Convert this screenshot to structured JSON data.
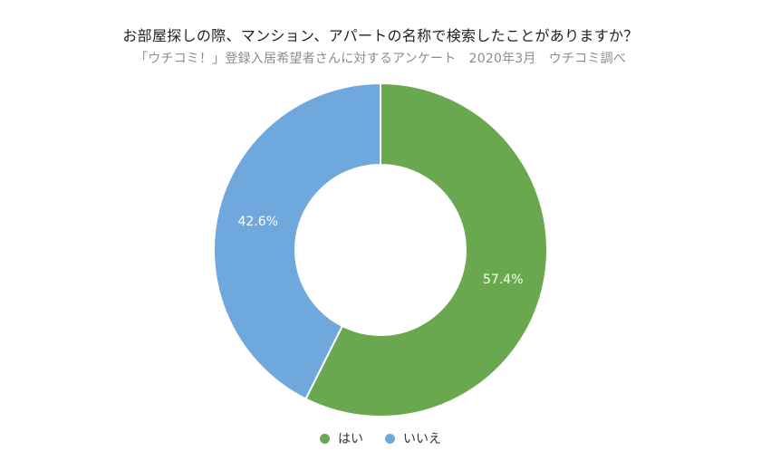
{
  "title": "お部屋探しの際、マンション、アパートの名称で検索したことがありますか？",
  "subtitle": "「ウチコミ！」登録入居希望者さんに対するアンケート　2020年3月　ウチコミ調べ",
  "chart_data": {
    "type": "pie",
    "variant": "donut",
    "categories": [
      "はい",
      "いいえ"
    ],
    "values": [
      57.4,
      42.6
    ],
    "labels": [
      "57.4%",
      "42.6%"
    ],
    "colors": [
      "#6aa84f",
      "#6fa8dc"
    ],
    "legend_position": "bottom"
  }
}
